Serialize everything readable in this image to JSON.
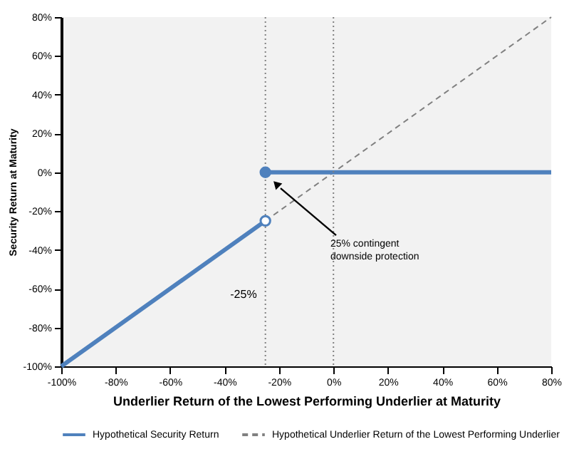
{
  "chart_data": {
    "type": "line",
    "xlabel": "Underlier Return of the Lowest Performing Underlier at Maturity",
    "ylabel": "Security Return at Maturity",
    "xlim": [
      -100,
      80
    ],
    "ylim": [
      -100,
      80
    ],
    "xticks": [
      {
        "value": -100,
        "label": "-100%"
      },
      {
        "value": -80,
        "label": "-80%"
      },
      {
        "value": -60,
        "label": "-60%"
      },
      {
        "value": -40,
        "label": "-40%"
      },
      {
        "value": -20,
        "label": "-20%"
      },
      {
        "value": 0,
        "label": "0%"
      },
      {
        "value": 20,
        "label": "20%"
      },
      {
        "value": 40,
        "label": "40%"
      },
      {
        "value": 60,
        "label": "60%"
      },
      {
        "value": 80,
        "label": "80%"
      }
    ],
    "yticks": [
      {
        "value": -100,
        "label": "-100%"
      },
      {
        "value": -80,
        "label": "-80%"
      },
      {
        "value": -60,
        "label": "-60%"
      },
      {
        "value": -40,
        "label": "-40%"
      },
      {
        "value": -20,
        "label": "-20%"
      },
      {
        "value": 0,
        "label": "0%"
      },
      {
        "value": 20,
        "label": "20%"
      },
      {
        "value": 40,
        "label": "40%"
      },
      {
        "value": 60,
        "label": "60%"
      },
      {
        "value": 80,
        "label": "80%"
      }
    ],
    "series": [
      {
        "name": "Hypothetical Security Return",
        "color": "#4f81bd",
        "line_style": "solid",
        "x": [
          -100,
          -25,
          null,
          -25,
          80
        ],
        "values": [
          -100,
          -25,
          null,
          0,
          0
        ]
      },
      {
        "name": "Hypothetical Underlier Return of the Lowest Performing Underlier",
        "color": "#808080",
        "line_style": "dashed",
        "x": [
          -25,
          80
        ],
        "values": [
          -25,
          80
        ]
      },
      {
        "type": "scatter",
        "marker": "circle",
        "color": "#4f81bd",
        "colors": [
          "#ffffff",
          "#4f81bd"
        ],
        "x": [
          -25,
          -25
        ],
        "values": [
          -25,
          0
        ]
      }
    ],
    "ref_lines": [
      {
        "axis": "x",
        "value": -25,
        "label": "-25%",
        "color": "#808080",
        "line_style": "dotted"
      },
      {
        "axis": "x",
        "value": 0,
        "color": "#808080",
        "line_style": "dotted"
      }
    ],
    "annotations": [
      {
        "text": "25% contingent downside protection",
        "x": -21,
        "y": -6
      }
    ],
    "grid": false,
    "legend": "bottom"
  }
}
